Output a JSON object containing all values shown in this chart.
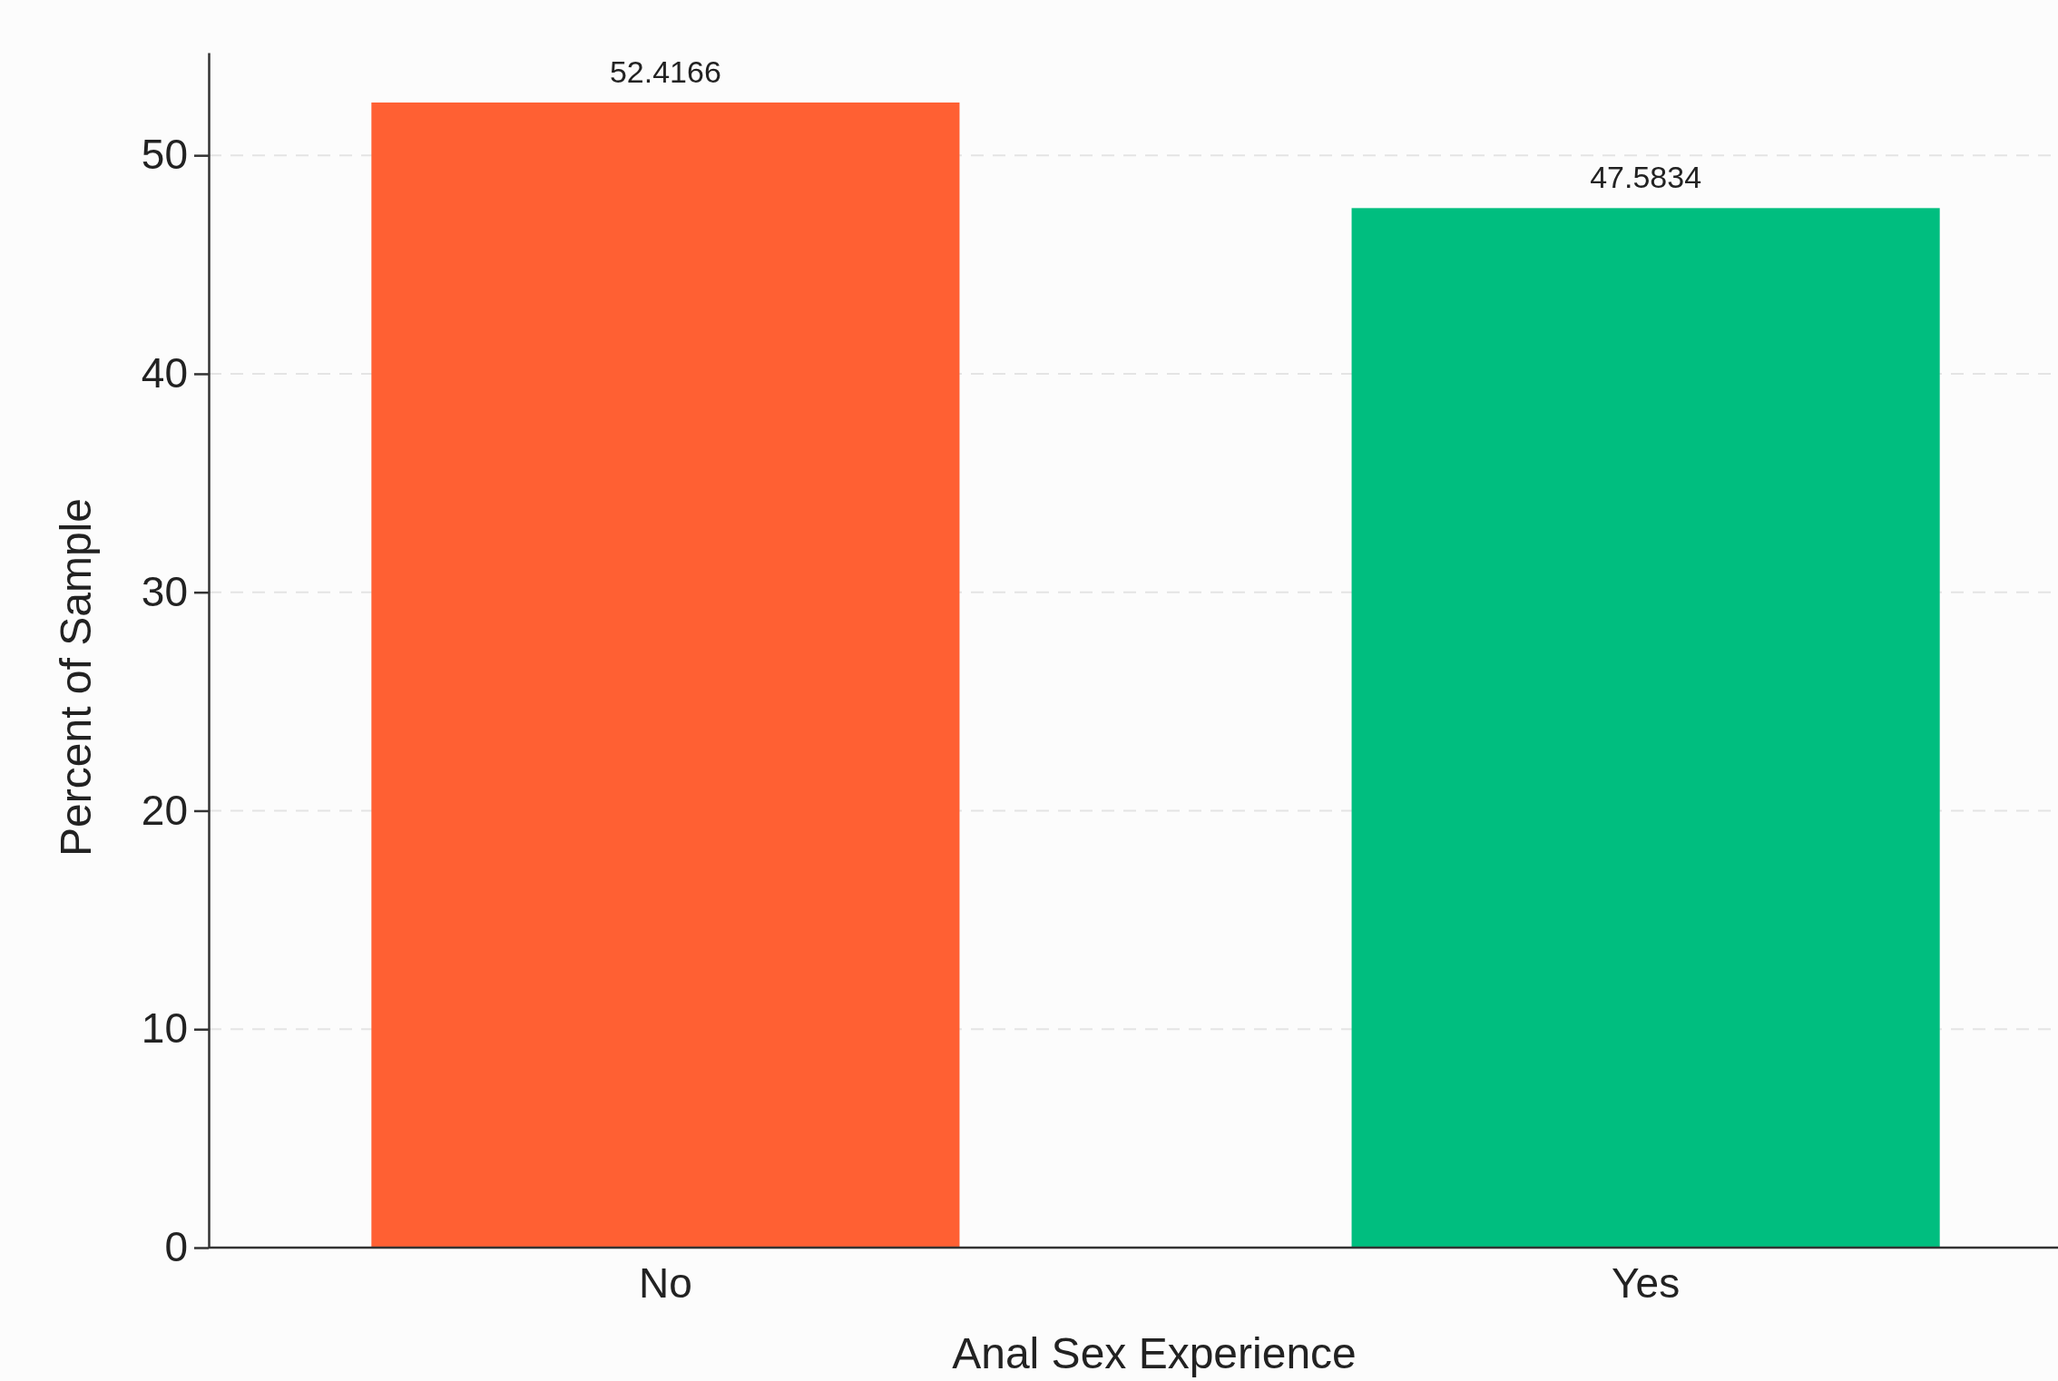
{
  "chart_data": {
    "type": "bar",
    "xlabel": "Anal Sex Experience",
    "ylabel": "Percent of Sample",
    "categories": [
      "No",
      "Yes"
    ],
    "values": [
      52.4166,
      47.5834
    ],
    "colors": [
      "#ff6033",
      "#00be7f"
    ],
    "ylim": [
      0,
      54.7
    ],
    "yticks": [
      0,
      10,
      20,
      30,
      40,
      50
    ],
    "grid": "y",
    "data_labels": true
  }
}
